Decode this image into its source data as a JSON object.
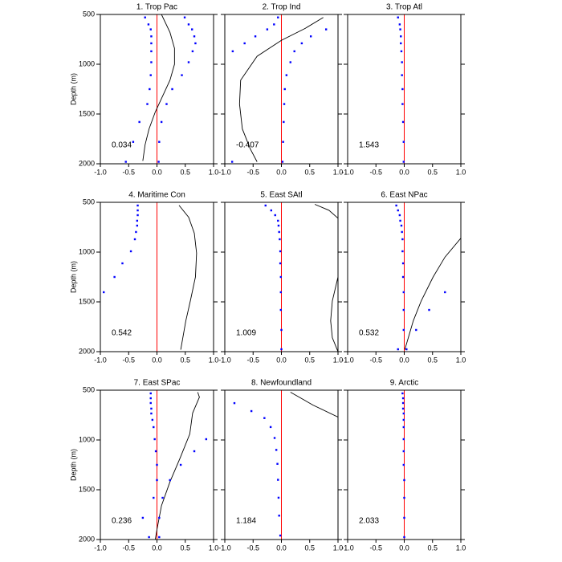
{
  "chart_data": [
    {
      "type": "profile",
      "title": "1. Trop Pac",
      "ylabel": "Depth (m)",
      "annotation": "0.034",
      "ytick_labels": true,
      "y_reversed": true,
      "zero_line_color": "#ff0000",
      "xlim": [
        -1,
        1
      ],
      "xticks": [
        {
          "value": -1,
          "label": "-1.0"
        },
        {
          "value": -0.5,
          "label": "-0.5"
        },
        {
          "value": 0,
          "label": "0.0"
        },
        {
          "value": 0.5,
          "label": "0.5"
        },
        {
          "value": 1,
          "label": "1.0"
        }
      ],
      "ylim": [
        500,
        2000
      ],
      "yticks": [
        500,
        1000,
        1500,
        2000
      ],
      "series": [
        {
          "style": "line",
          "color": "#000000",
          "depth": [
            500,
            680,
            840,
            1000,
            1160,
            1320,
            1480,
            1650,
            1810,
            1970
          ],
          "values": [
            0.08,
            0.23,
            0.31,
            0.31,
            0.23,
            0.1,
            -0.03,
            -0.14,
            -0.21,
            -0.25
          ]
        },
        {
          "style": "dots",
          "color": "#0000ff",
          "depth": [
            530,
            600,
            650,
            720,
            790,
            870,
            980,
            1110,
            1250,
            1400,
            1580,
            1780,
            1980
          ],
          "values": [
            -0.21,
            -0.15,
            -0.11,
            -0.1,
            -0.1,
            -0.1,
            -0.1,
            -0.11,
            -0.13,
            -0.17,
            -0.31,
            -0.42,
            -0.55
          ]
        },
        {
          "style": "dots",
          "color": "#0000ff",
          "depth": [
            530,
            600,
            650,
            720,
            790,
            870,
            980,
            1110,
            1250,
            1400,
            1580,
            1780,
            1980
          ],
          "values": [
            0.49,
            0.56,
            0.62,
            0.66,
            0.68,
            0.63,
            0.56,
            0.44,
            0.27,
            0.17,
            0.08,
            0.04,
            0.03
          ]
        }
      ]
    },
    {
      "type": "profile",
      "title": "2. Trop Ind",
      "annotation": "-0.407",
      "ytick_labels": false,
      "y_reversed": true,
      "zero_line_color": "#ff0000",
      "xlim": [
        -1,
        1
      ],
      "xticks": [
        {
          "value": -1,
          "label": "-1.0"
        },
        {
          "value": -0.5,
          "label": "-0.5"
        },
        {
          "value": 0,
          "label": "0.0"
        },
        {
          "value": 0.5,
          "label": "0.5"
        },
        {
          "value": 1,
          "label": "1.0"
        }
      ],
      "ylim": [
        500,
        2000
      ],
      "yticks": [
        500,
        1000,
        1500,
        2000
      ],
      "series": [
        {
          "style": "line",
          "color": "#000000",
          "depth": [
            530,
            640,
            760,
            920,
            1160,
            1400,
            1650,
            1850,
            1980
          ],
          "values": [
            0.74,
            0.42,
            0,
            -0.43,
            -0.72,
            -0.74,
            -0.69,
            -0.55,
            -0.43
          ]
        },
        {
          "style": "dots",
          "color": "#0000ff",
          "depth": [
            530,
            600,
            650,
            720,
            790,
            870,
            980,
            1110,
            1250,
            1400,
            1580,
            1780,
            1980
          ],
          "values": [
            -0.06,
            -0.13,
            -0.25,
            -0.46,
            -0.65,
            -0.86,
            null,
            null,
            null,
            null,
            null,
            null,
            -0.87
          ]
        },
        {
          "style": "dots",
          "color": "#0000ff",
          "depth": [
            530,
            600,
            650,
            720,
            790,
            870,
            980,
            1110,
            1250,
            1400,
            1580,
            1780,
            1980
          ],
          "values": [
            null,
            null,
            0.79,
            0.52,
            0.36,
            0.23,
            0.16,
            0.09,
            0.06,
            0.05,
            0.04,
            0.03,
            0.02
          ]
        }
      ]
    },
    {
      "type": "profile",
      "title": "3. Trop Atl",
      "annotation": "1.543",
      "ytick_labels": false,
      "y_reversed": true,
      "zero_line_color": "#ff0000",
      "xlim": [
        -1,
        1
      ],
      "xticks": [
        {
          "value": -1,
          "label": "-1.0"
        },
        {
          "value": -0.5,
          "label": "-0.5"
        },
        {
          "value": 0,
          "label": "0.0"
        },
        {
          "value": 0.5,
          "label": "0.5"
        },
        {
          "value": 1,
          "label": "1.0"
        }
      ],
      "ylim": [
        500,
        2000
      ],
      "yticks": [
        500,
        1000,
        1500,
        2000
      ],
      "series": [
        {
          "style": "dots",
          "color": "#0000ff",
          "depth": [
            530,
            600,
            650,
            720,
            790,
            870,
            980,
            1110,
            1250,
            1400,
            1580,
            1780,
            1980
          ],
          "values": [
            -0.11,
            -0.08,
            -0.07,
            -0.06,
            -0.06,
            -0.05,
            -0.04,
            -0.04,
            -0.03,
            -0.03,
            -0.02,
            -0.01,
            -0.01
          ]
        }
      ]
    },
    {
      "type": "profile",
      "title": "4. Maritime Con",
      "ylabel": "Depth (m)",
      "annotation": "0.542",
      "ytick_labels": true,
      "y_reversed": true,
      "zero_line_color": "#ff0000",
      "xlim": [
        -1,
        1
      ],
      "xticks": [
        {
          "value": -1,
          "label": "-1.0"
        },
        {
          "value": -0.5,
          "label": "-0.5"
        },
        {
          "value": 0,
          "label": "0.0"
        },
        {
          "value": 0.5,
          "label": "0.5"
        },
        {
          "value": 1,
          "label": "1.0"
        }
      ],
      "ylim": [
        500,
        2000
      ],
      "yticks": [
        500,
        1000,
        1500,
        2000
      ],
      "series": [
        {
          "style": "line",
          "color": "#000000",
          "depth": [
            530,
            650,
            810,
            1010,
            1250,
            1490,
            1690,
            1980
          ],
          "values": [
            0.39,
            0.56,
            0.66,
            0.7,
            0.68,
            0.59,
            0.51,
            0.42
          ]
        },
        {
          "style": "dots",
          "color": "#0000ff",
          "depth": [
            532,
            581,
            629,
            685,
            734,
            798,
            871,
            992,
            1113,
            1250,
            1403
          ],
          "values": [
            -0.34,
            -0.34,
            -0.34,
            -0.35,
            -0.35,
            -0.37,
            -0.39,
            -0.46,
            -0.61,
            -0.75,
            -0.94
          ]
        }
      ]
    },
    {
      "type": "profile",
      "title": "5. East SAtl",
      "annotation": "1.009",
      "ytick_labels": false,
      "y_reversed": true,
      "zero_line_color": "#ff0000",
      "xlim": [
        -1,
        1
      ],
      "xticks": [
        {
          "value": -1,
          "label": "-1.0"
        },
        {
          "value": -0.5,
          "label": "-0.5"
        },
        {
          "value": 0,
          "label": "0.0"
        },
        {
          "value": 0.5,
          "label": "0.5"
        },
        {
          "value": 1,
          "label": "1.0"
        }
      ],
      "ylim": [
        500,
        2000
      ],
      "yticks": [
        500,
        1000,
        1500,
        2000
      ],
      "series": [
        {
          "style": "line",
          "color": "#000000",
          "depth": [
            520,
            580,
            660
          ],
          "values": [
            0.59,
            0.84,
            1.0
          ]
        },
        {
          "style": "line",
          "color": "#000000",
          "depth": [
            1250,
            1490,
            1690,
            1860,
            2000
          ],
          "values": [
            1.0,
            0.9,
            0.87,
            0.9,
            1.0
          ]
        },
        {
          "style": "dots",
          "color": "#0000ff",
          "depth": [
            532,
            581,
            629,
            685,
            734,
            798,
            871,
            992,
            1113,
            1250,
            1403,
            1581,
            1782,
            1976
          ],
          "values": [
            -0.28,
            -0.18,
            -0.11,
            -0.06,
            -0.05,
            -0.04,
            -0.03,
            -0.02,
            -0.02,
            -0.01,
            -0.01,
            -0.01,
            0,
            0
          ]
        }
      ]
    },
    {
      "type": "profile",
      "title": "6. East NPac",
      "annotation": "0.532",
      "ytick_labels": false,
      "y_reversed": true,
      "zero_line_color": "#ff0000",
      "xlim": [
        -1,
        1
      ],
      "xticks": [
        {
          "value": -1,
          "label": "-1.0"
        },
        {
          "value": -0.5,
          "label": "-0.5"
        },
        {
          "value": 0,
          "label": "0.0"
        },
        {
          "value": 0.5,
          "label": "0.5"
        },
        {
          "value": 1,
          "label": "1.0"
        }
      ],
      "ylim": [
        500,
        2000
      ],
      "yticks": [
        500,
        1000,
        1500,
        2000
      ],
      "series": [
        {
          "style": "line",
          "color": "#000000",
          "depth": [
            860,
            1050,
            1250,
            1490,
            1690,
            1980
          ],
          "values": [
            1.0,
            0.72,
            0.51,
            0.3,
            0.16,
            0.01
          ]
        },
        {
          "style": "dots",
          "color": "#0000ff",
          "depth": [
            532,
            581,
            629,
            685,
            734,
            798,
            871,
            992,
            1113,
            1250,
            1403,
            1581,
            1782,
            1976
          ],
          "values": [
            -0.14,
            -0.11,
            -0.08,
            -0.07,
            -0.05,
            -0.04,
            -0.03,
            -0.03,
            -0.02,
            -0.02,
            -0.01,
            -0.01,
            -0.01,
            -0.11
          ]
        },
        {
          "style": "dots",
          "color": "#0000ff",
          "depth": [
            1403,
            1581,
            1782,
            1976
          ],
          "values": [
            0.72,
            0.44,
            0.21,
            0.04
          ]
        }
      ]
    },
    {
      "type": "profile",
      "title": "7. East SPac",
      "ylabel": "Depth (m)",
      "annotation": "0.236",
      "ytick_labels": true,
      "y_reversed": true,
      "zero_line_color": "#ff0000",
      "xlim": [
        -1,
        1
      ],
      "xticks": [
        {
          "value": -1,
          "label": "-1.0"
        },
        {
          "value": -0.5,
          "label": "-0.5"
        },
        {
          "value": 0,
          "label": "0.0"
        },
        {
          "value": 0.5,
          "label": "0.5"
        },
        {
          "value": 1,
          "label": "1.0"
        }
      ],
      "ylim": [
        500,
        2000
      ],
      "yticks": [
        500,
        1000,
        1500,
        2000
      ],
      "series": [
        {
          "style": "line",
          "color": "#000000",
          "depth": [
            520,
            570,
            730,
            940,
            1180,
            1420,
            1660,
            1900,
            2000
          ],
          "values": [
            0.72,
            0.75,
            0.63,
            0.58,
            0.41,
            0.23,
            0.08,
            0,
            -0.03
          ]
        },
        {
          "style": "dots",
          "color": "#0000ff",
          "depth": [
            532,
            581,
            629,
            685,
            734,
            798,
            871,
            992,
            1113,
            1250,
            1403,
            1581,
            1782,
            1976
          ],
          "values": [
            -0.11,
            -0.11,
            -0.11,
            -0.1,
            -0.1,
            -0.08,
            -0.06,
            -0.04,
            -0.02,
            0,
            0,
            -0.06,
            -0.25,
            -0.14
          ]
        },
        {
          "style": "dots",
          "color": "#0000ff",
          "depth": [
            992,
            1113,
            1250,
            1403,
            1581,
            1782,
            1976
          ],
          "values": [
            0.87,
            0.66,
            0.42,
            0.23,
            0.1,
            0.04,
            0.04
          ]
        }
      ]
    },
    {
      "type": "profile",
      "title": "8. Newfoundland",
      "annotation": "1.184",
      "ytick_labels": false,
      "y_reversed": true,
      "zero_line_color": "#ff0000",
      "xlim": [
        -1,
        1
      ],
      "xticks": [
        {
          "value": -1,
          "label": "-1.0"
        },
        {
          "value": -0.5,
          "label": "-0.5"
        },
        {
          "value": 0,
          "label": "0.0"
        },
        {
          "value": 0.5,
          "label": "0.5"
        },
        {
          "value": 1,
          "label": "1.0"
        }
      ],
      "ylim": [
        500,
        2000
      ],
      "yticks": [
        500,
        1000,
        1500,
        2000
      ],
      "series": [
        {
          "style": "line",
          "color": "#000000",
          "depth": [
            520,
            650,
            770
          ],
          "values": [
            0.16,
            0.56,
            1.0
          ]
        },
        {
          "style": "dots",
          "color": "#0000ff",
          "depth": [
            630,
            710,
            780,
            870,
            980,
            1100,
            1240,
            1400,
            1580,
            1760,
            1960
          ],
          "values": [
            -0.83,
            -0.53,
            -0.3,
            -0.19,
            -0.12,
            -0.09,
            -0.07,
            -0.06,
            -0.05,
            -0.04,
            -0.02
          ]
        }
      ]
    },
    {
      "type": "profile",
      "title": "9. Arctic",
      "annotation": "2.033",
      "ytick_labels": false,
      "y_reversed": true,
      "zero_line_color": "#ff0000",
      "xlim": [
        -1,
        1
      ],
      "xticks": [
        {
          "value": -1,
          "label": "-1.0"
        },
        {
          "value": -0.5,
          "label": "-0.5"
        },
        {
          "value": 0,
          "label": "0.0"
        },
        {
          "value": 0.5,
          "label": "0.5"
        },
        {
          "value": 1,
          "label": "1.0"
        }
      ],
      "ylim": [
        500,
        2000
      ],
      "yticks": [
        500,
        1000,
        1500,
        2000
      ],
      "series": [
        {
          "style": "dots",
          "color": "#0000ff",
          "depth": [
            532,
            581,
            629,
            685,
            734,
            798,
            871,
            992,
            1113,
            1250,
            1403,
            1581,
            1782,
            1976
          ],
          "values": [
            -0.03,
            -0.02,
            -0.02,
            -0.02,
            -0.01,
            -0.01,
            -0.01,
            -0.01,
            -0.01,
            -0.01,
            0,
            0,
            0,
            0
          ]
        }
      ]
    }
  ]
}
